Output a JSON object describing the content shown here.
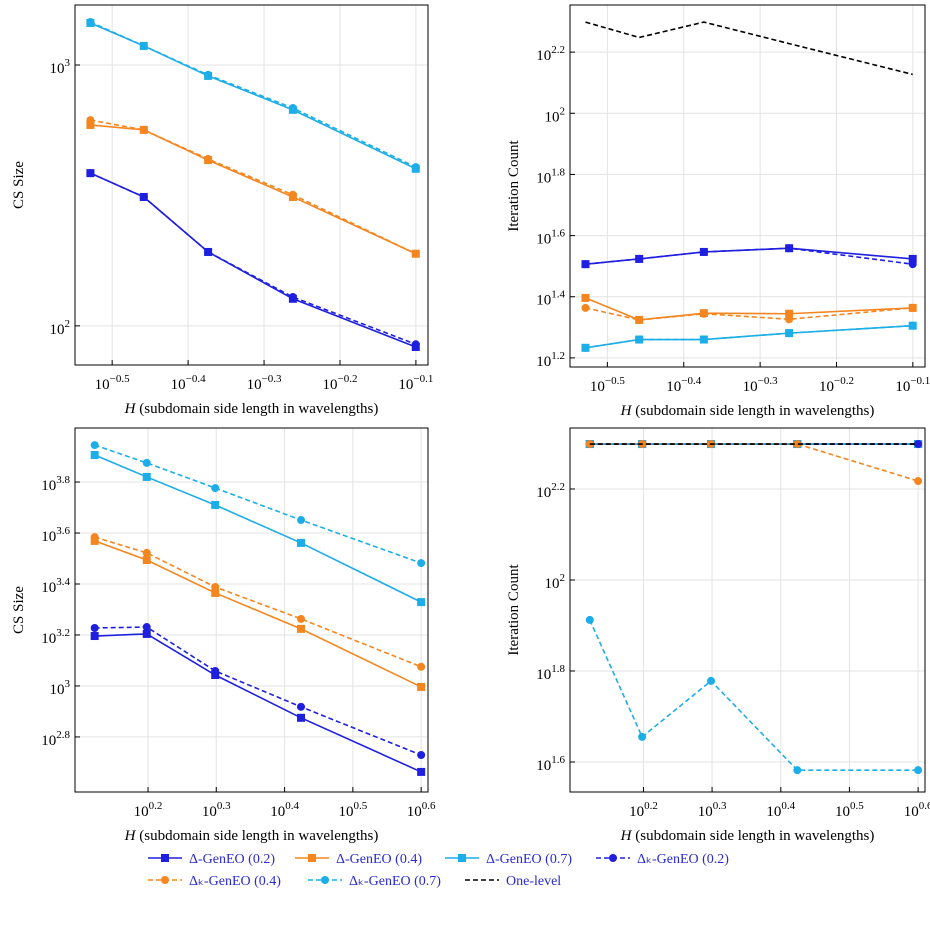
{
  "chart_data": [
    {
      "type": "line",
      "xlabel": "H (subdomain side length in wavelengths)",
      "ylabel": "CS Size",
      "xlog": true,
      "ylog": true,
      "grid": true,
      "x": [
        0.296,
        0.348,
        0.423,
        0.547,
        0.794
      ],
      "xlim": [
        0.2825,
        0.824
      ],
      "xticks": [
        {
          "value": 0.3162,
          "label": "10^−0.5"
        },
        {
          "value": 0.3981,
          "label": "10^−0.4"
        },
        {
          "value": 0.5012,
          "label": "10^−0.3"
        },
        {
          "value": 0.631,
          "label": "10^−0.2"
        },
        {
          "value": 0.7943,
          "label": "10^−0.1"
        }
      ],
      "ylim": [
        70.8,
        1698
      ],
      "yticks": [
        {
          "value": 100,
          "label": "10^2"
        },
        {
          "value": 1000,
          "label": "10^3"
        }
      ],
      "series": [
        {
          "name": "Δ-GenEO (0.2)",
          "color": "#1f1fe0",
          "dashed": false,
          "marker": "square",
          "values": [
            385,
            312,
            192,
            127,
            83
          ]
        },
        {
          "name": "Δ-GenEO (0.4)",
          "color": "#f5861f",
          "dashed": false,
          "marker": "square",
          "values": [
            589,
            564,
            432,
            312,
            189
          ]
        },
        {
          "name": "Δ-GenEO (0.7)",
          "color": "#1caee8",
          "dashed": false,
          "marker": "square",
          "values": [
            1449,
            1183,
            908,
            673,
            400
          ]
        },
        {
          "name": "Δₖ-GenEO (0.2)",
          "color": "#1f1fe0",
          "dashed": true,
          "marker": "circle",
          "values": [
            385,
            312,
            192,
            129,
            85
          ]
        },
        {
          "name": "Δₖ-GenEO (0.4)",
          "color": "#f5861f",
          "dashed": true,
          "marker": "circle",
          "values": [
            615,
            564,
            436,
            318,
            189
          ]
        },
        {
          "name": "Δₖ-GenEO (0.7)",
          "color": "#1caee8",
          "dashed": true,
          "marker": "circle",
          "values": [
            1462,
            1183,
            916,
            684,
            406
          ]
        }
      ]
    },
    {
      "type": "line",
      "xlabel": "H (subdomain side length in wavelengths)",
      "ylabel": "Iteration Count",
      "xlog": true,
      "ylog": true,
      "grid": true,
      "x": [
        0.296,
        0.348,
        0.423,
        0.547,
        0.794
      ],
      "xlim": [
        0.2825,
        0.824
      ],
      "xticks": [
        {
          "value": 0.3162,
          "label": "10^−0.5"
        },
        {
          "value": 0.3981,
          "label": "10^−0.4"
        },
        {
          "value": 0.5012,
          "label": "10^−0.3"
        },
        {
          "value": 0.631,
          "label": "10^−0.2"
        },
        {
          "value": 0.7943,
          "label": "10^−0.1"
        }
      ],
      "ylim": [
        14.8,
        226
      ],
      "yticks": [
        {
          "value": 15.85,
          "label": "10^1.2"
        },
        {
          "value": 25.12,
          "label": "10^1.4"
        },
        {
          "value": 39.81,
          "label": "10^1.6"
        },
        {
          "value": 63.1,
          "label": "10^1.8"
        },
        {
          "value": 100,
          "label": "10^2"
        },
        {
          "value": 158.5,
          "label": "10^2.2"
        }
      ],
      "series": [
        {
          "name": "Δ-GenEO (0.2)",
          "color": "#1f1fe0",
          "dashed": false,
          "marker": "square",
          "values": [
            32.1,
            33.4,
            35.2,
            36.2,
            33.4
          ]
        },
        {
          "name": "Δ-GenEO (0.4)",
          "color": "#f5861f",
          "dashed": false,
          "marker": "square",
          "values": [
            24.9,
            21.1,
            22.2,
            22.1,
            23.1
          ]
        },
        {
          "name": "Δ-GenEO (0.7)",
          "color": "#1caee8",
          "dashed": false,
          "marker": "square",
          "values": [
            17.1,
            18.2,
            18.2,
            19.1,
            20.2
          ]
        },
        {
          "name": "Δₖ-GenEO (0.2)",
          "color": "#1f1fe0",
          "dashed": true,
          "marker": "circle",
          "values": [
            32.1,
            33.4,
            35.2,
            36.2,
            32.1
          ]
        },
        {
          "name": "Δₖ-GenEO (0.4)",
          "color": "#f5861f",
          "dashed": true,
          "marker": "circle",
          "values": [
            23.1,
            21.1,
            22.1,
            21.2,
            23.1
          ]
        },
        {
          "name": "Δₖ-GenEO (0.7)",
          "color": "#1caee8",
          "dashed": true,
          "marker": "circle",
          "values": [
            17.1,
            18.2,
            18.2,
            19.1,
            20.2
          ]
        },
        {
          "name": "One-level",
          "color": "#000000",
          "dashed": true,
          "values": [
            198.7,
            177,
            198.7,
            169,
            134
          ]
        }
      ]
    },
    {
      "type": "line",
      "xlabel": "H (subdomain side length in wavelengths)",
      "ylabel": "CS Size",
      "xlog": true,
      "ylog": true,
      "grid": true,
      "x": [
        1.324,
        1.578,
        1.988,
        2.655,
        3.981
      ],
      "xlim": [
        1.239,
        4.074
      ],
      "xticks": [
        {
          "value": 1.585,
          "label": "10^0.2"
        },
        {
          "value": 1.995,
          "label": "10^0.3"
        },
        {
          "value": 2.512,
          "label": "10^0.4"
        },
        {
          "value": 3.162,
          "label": "10^0.5"
        },
        {
          "value": 3.981,
          "label": "10^0.6"
        }
      ],
      "ylim": [
        383.7,
        10280
      ],
      "yticks": [
        {
          "value": 631,
          "label": "10^2.8"
        },
        {
          "value": 1000,
          "label": "10^3"
        },
        {
          "value": 1585,
          "label": "10^3.2"
        },
        {
          "value": 2512,
          "label": "10^3.4"
        },
        {
          "value": 3981,
          "label": "10^3.6"
        },
        {
          "value": 6310,
          "label": "10^3.8"
        }
      ],
      "series": [
        {
          "name": "Δ-GenEO (0.2)",
          "color": "#1f1fe0",
          "dashed": false,
          "marker": "square",
          "values": [
            1570,
            1600,
            1104,
            750,
            460
          ]
        },
        {
          "name": "Δ-GenEO (0.4)",
          "color": "#f5861f",
          "dashed": false,
          "marker": "square",
          "values": [
            3707,
            3119,
            2317,
            1675,
            991
          ]
        },
        {
          "name": "Δ-GenEO (0.7)",
          "color": "#1caee8",
          "dashed": false,
          "marker": "square",
          "values": [
            8054,
            6607,
            5129,
            3640,
            2133
          ]
        },
        {
          "name": "Δₖ-GenEO (0.2)",
          "color": "#1f1fe0",
          "dashed": true,
          "marker": "circle",
          "values": [
            1688,
            1703,
            1145,
            828,
            536
          ]
        },
        {
          "name": "Δₖ-GenEO (0.4)",
          "color": "#f5861f",
          "dashed": true,
          "marker": "circle",
          "values": [
            3838,
            3327,
            2445,
            1832,
            1189
          ]
        },
        {
          "name": "Δₖ-GenEO (0.7)",
          "color": "#1caee8",
          "dashed": true,
          "marker": "circle",
          "values": [
            8810,
            7499,
            5975,
            4477,
            3034
          ]
        }
      ]
    },
    {
      "type": "line",
      "xlabel": "H (subdomain side length in wavelengths)",
      "ylabel": "Iteration Count",
      "xlog": true,
      "ylog": true,
      "grid": true,
      "legend": "bottom",
      "x": [
        1.324,
        1.578,
        1.988,
        2.655,
        3.981
      ],
      "xlim": [
        1.239,
        4.074
      ],
      "xticks": [
        {
          "value": 1.585,
          "label": "10^0.2"
        },
        {
          "value": 1.995,
          "label": "10^0.3"
        },
        {
          "value": 2.512,
          "label": "10^0.4"
        },
        {
          "value": 3.162,
          "label": "10^0.5"
        },
        {
          "value": 3.981,
          "label": "10^0.6"
        }
      ],
      "ylim": [
        34.2,
        215.8
      ],
      "yticks": [
        {
          "value": 39.81,
          "label": "10^1.6"
        },
        {
          "value": 63.1,
          "label": "10^1.8"
        },
        {
          "value": 100,
          "label": "10^2"
        },
        {
          "value": 158.5,
          "label": "10^2.2"
        }
      ],
      "series": [
        {
          "name": "Δ-GenEO (0.2)",
          "color": "#1f1fe0",
          "dashed": false,
          "marker": "square",
          "values": [
            199,
            199,
            199,
            199,
            199
          ]
        },
        {
          "name": "Δ-GenEO (0.4)",
          "color": "#f5861f",
          "dashed": false,
          "marker": "square",
          "values": [
            199,
            199,
            199,
            199,
            199
          ]
        },
        {
          "name": "Δ-GenEO (0.7)",
          "color": "#1caee8",
          "dashed": false,
          "marker": "square",
          "values": [
            199,
            199,
            199,
            199,
            199
          ]
        },
        {
          "name": "Δₖ-GenEO (0.2)",
          "color": "#1f1fe0",
          "dashed": true,
          "marker": "circle",
          "values": [
            199,
            199,
            199,
            199,
            199
          ]
        },
        {
          "name": "Δₖ-GenEO (0.4)",
          "color": "#f5861f",
          "dashed": true,
          "marker": "circle",
          "values": [
            199,
            199,
            199,
            199,
            165
          ]
        },
        {
          "name": "Δₖ-GenEO (0.7)",
          "color": "#1caee8",
          "dashed": true,
          "marker": "circle",
          "values": [
            81.7,
            45.2,
            60.0,
            38.2,
            38.2
          ]
        },
        {
          "name": "One-level",
          "color": "#000000",
          "dashed": true,
          "values": [
            199,
            199,
            199,
            199,
            199
          ]
        }
      ]
    }
  ]
}
